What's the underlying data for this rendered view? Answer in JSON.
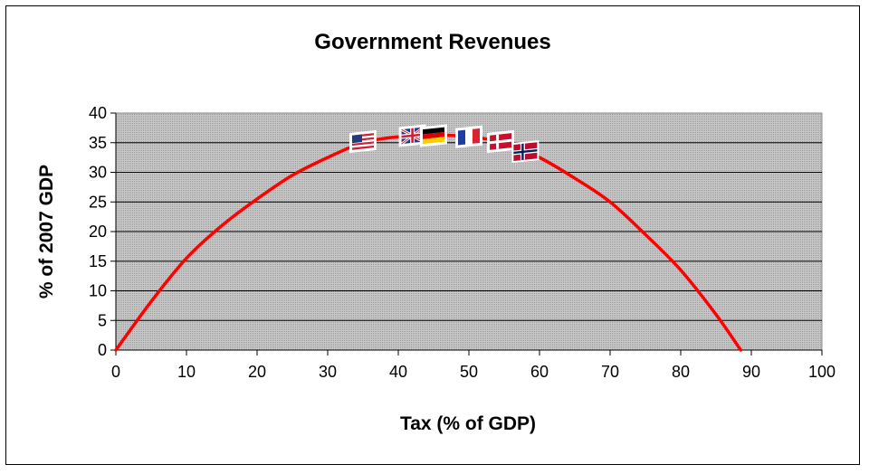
{
  "chart_data": {
    "type": "line",
    "title": "Government Revenues",
    "xlabel": "Tax (% of GDP)",
    "ylabel": "% of 2007 GDP",
    "xlim": [
      0,
      100
    ],
    "ylim": [
      0,
      40
    ],
    "xticks": [
      "0",
      "10",
      "20",
      "30",
      "40",
      "50",
      "60",
      "70",
      "80",
      "90",
      "100"
    ],
    "yticks": [
      "0",
      "5",
      "10",
      "15",
      "20",
      "25",
      "30",
      "35",
      "40"
    ],
    "grid": true,
    "plot_background": "#c8c8c8",
    "line_color": "#ff0000",
    "series": [
      {
        "x": [
          0,
          5,
          10,
          15,
          20,
          25,
          30,
          35,
          40,
          45,
          50,
          55,
          60,
          65,
          70,
          75,
          80,
          85,
          88.5
        ],
        "y": [
          0,
          8.2,
          15.5,
          21,
          25.5,
          29.5,
          32.5,
          35,
          36,
          36.3,
          36,
          35,
          32.5,
          29,
          25,
          19.5,
          13.5,
          6,
          0
        ]
      }
    ],
    "markers": [
      {
        "icon": "usa-flag-icon",
        "x": 35,
        "y": 35.2
      },
      {
        "icon": "uk-flag-icon",
        "x": 42,
        "y": 36.2
      },
      {
        "icon": "germany-flag-icon",
        "x": 45,
        "y": 36.2
      },
      {
        "icon": "france-flag-icon",
        "x": 50,
        "y": 36.0
      },
      {
        "icon": "denmark-flag-icon",
        "x": 54.5,
        "y": 35.2
      },
      {
        "icon": "norway-flag-icon",
        "x": 58,
        "y": 33.5
      }
    ]
  }
}
